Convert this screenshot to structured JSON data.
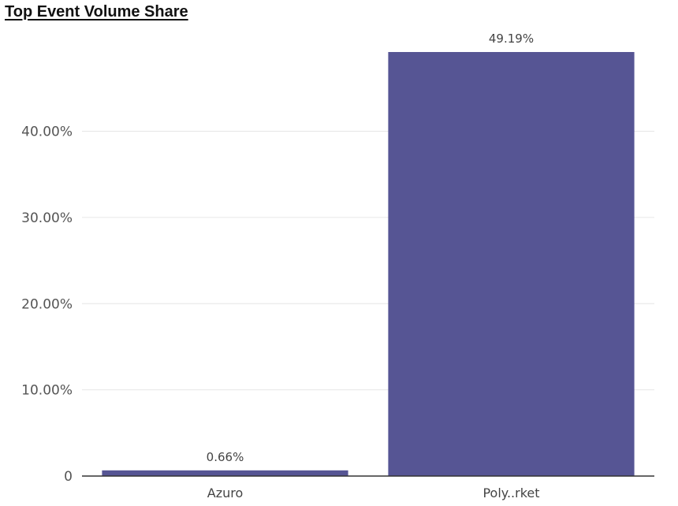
{
  "chart_data": {
    "type": "bar",
    "title": "Top Event Volume Share",
    "categories": [
      "Azuro",
      "Poly..rket"
    ],
    "series": [
      {
        "values": [
          0.66,
          49.19
        ],
        "data_labels": [
          "0.66%",
          "49.19%"
        ]
      }
    ],
    "ylim": [
      0,
      49.19
    ],
    "yticks": [
      0,
      10,
      20,
      30,
      40
    ],
    "ytick_labels": [
      "0",
      "10.00%",
      "20.00%",
      "30.00%",
      "40.00%"
    ],
    "xlabel": "",
    "ylabel": "",
    "grid": true,
    "legend": "none",
    "colors": {
      "bar": "#565594",
      "grid": "#e6e6e6",
      "axis": "#333333"
    }
  }
}
